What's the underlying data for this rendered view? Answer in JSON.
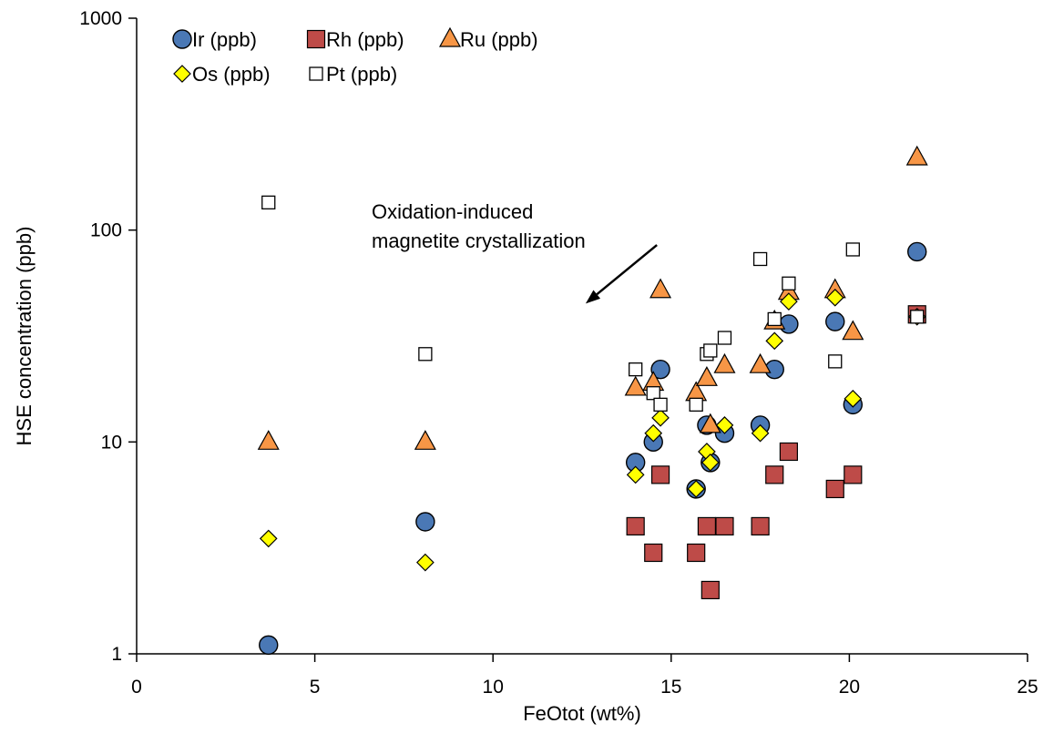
{
  "chart_data": {
    "type": "scatter",
    "xlabel": "FeOtot (wt%)",
    "ylabel": "HSE concentration (ppb)",
    "xlim": [
      0,
      25
    ],
    "ylim": [
      1,
      1000
    ],
    "yscale": "log",
    "xticks": [
      0,
      5,
      10,
      15,
      20,
      25
    ],
    "xtick_labels": [
      "0",
      "5",
      "10",
      "15",
      "20",
      "25"
    ],
    "yticks": [
      1,
      10,
      100,
      1000
    ],
    "ytick_labels": [
      "1",
      "10",
      "100",
      "1000"
    ],
    "grid": false,
    "legend_position": "top-left",
    "series": [
      {
        "name": "Ir (ppb)",
        "marker": "circle",
        "color": "#4a78b5",
        "points": [
          [
            3.7,
            1.1
          ],
          [
            8.1,
            4.2
          ],
          [
            14.0,
            8.0
          ],
          [
            14.5,
            10.0
          ],
          [
            14.7,
            22.0
          ],
          [
            15.7,
            6.0
          ],
          [
            16.0,
            12.0
          ],
          [
            16.1,
            8.0
          ],
          [
            16.5,
            11.0
          ],
          [
            17.5,
            12.0
          ],
          [
            17.9,
            22.0
          ],
          [
            18.3,
            36.0
          ],
          [
            19.6,
            37.0
          ],
          [
            20.1,
            15.0
          ],
          [
            21.9,
            79.0
          ]
        ]
      },
      {
        "name": "Rh (ppb)",
        "marker": "square",
        "color": "#be4b48",
        "points": [
          [
            14.0,
            4.0
          ],
          [
            14.5,
            3.0
          ],
          [
            14.7,
            7.0
          ],
          [
            15.7,
            3.0
          ],
          [
            16.0,
            4.0
          ],
          [
            16.1,
            2.0
          ],
          [
            16.5,
            4.0
          ],
          [
            17.5,
            4.0
          ],
          [
            17.9,
            7.0
          ],
          [
            18.3,
            9.0
          ],
          [
            19.6,
            6.0
          ],
          [
            20.1,
            7.0
          ],
          [
            21.9,
            40.0
          ]
        ]
      },
      {
        "name": "Ru (ppb)",
        "marker": "triangle",
        "color": "#f79646",
        "points": [
          [
            3.7,
            10.0
          ],
          [
            8.1,
            10.0
          ],
          [
            14.0,
            18.0
          ],
          [
            14.5,
            19.0
          ],
          [
            14.7,
            52.0
          ],
          [
            15.7,
            17.0
          ],
          [
            16.0,
            20.0
          ],
          [
            16.1,
            12.0
          ],
          [
            16.5,
            23.0
          ],
          [
            17.5,
            23.0
          ],
          [
            17.9,
            37.0
          ],
          [
            18.3,
            51.0
          ],
          [
            19.6,
            52.0
          ],
          [
            20.1,
            33.0
          ],
          [
            21.9,
            220.0
          ]
        ]
      },
      {
        "name": "Os (ppb)",
        "marker": "diamond",
        "color": "#ffff00",
        "points": [
          [
            3.7,
            3.5
          ],
          [
            8.1,
            2.7
          ],
          [
            14.0,
            7.0
          ],
          [
            14.5,
            11.0
          ],
          [
            14.7,
            13.0
          ],
          [
            15.7,
            6.0
          ],
          [
            16.0,
            9.0
          ],
          [
            16.1,
            8.0
          ],
          [
            16.5,
            12.0
          ],
          [
            17.5,
            11.0
          ],
          [
            17.9,
            30.0
          ],
          [
            18.3,
            46.0
          ],
          [
            19.6,
            48.0
          ],
          [
            20.1,
            16.0
          ],
          [
            21.9,
            39.0
          ]
        ]
      },
      {
        "name": "Pt (ppb)",
        "marker": "open-square",
        "color": "#ffffff",
        "points": [
          [
            3.7,
            135.0
          ],
          [
            8.1,
            26.0
          ],
          [
            14.0,
            22.0
          ],
          [
            14.5,
            17.0
          ],
          [
            14.7,
            15.0
          ],
          [
            15.7,
            15.0
          ],
          [
            16.0,
            26.0
          ],
          [
            16.1,
            27.0
          ],
          [
            16.5,
            31.0
          ],
          [
            17.5,
            73.0
          ],
          [
            17.9,
            38.0
          ],
          [
            18.3,
            56.0
          ],
          [
            19.6,
            24.0
          ],
          [
            20.1,
            81.0
          ],
          [
            21.9,
            39.0
          ]
        ]
      }
    ],
    "annotations": [
      {
        "lines": [
          "Oxidation-induced",
          "magnetite crystallization"
        ],
        "arrow_from": [
          14.6,
          85
        ],
        "arrow_to": [
          12.6,
          45
        ]
      }
    ]
  }
}
